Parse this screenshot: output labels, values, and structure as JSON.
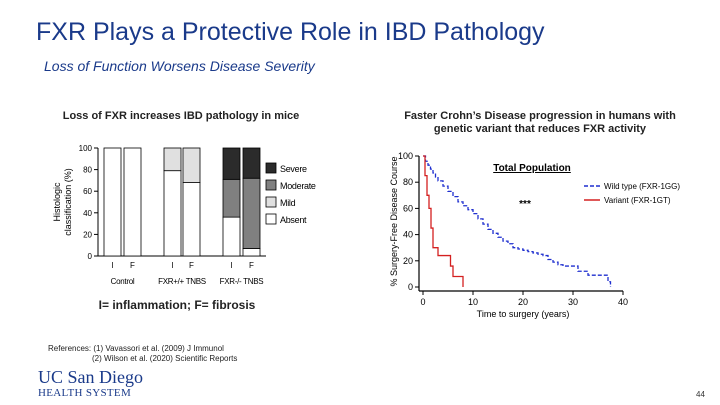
{
  "slide": {
    "title": "FXR Plays a Protective Role in IBD Pathology",
    "subtitle": "Loss of Function Worsens Disease Severity",
    "footnote": "I= inflammation; F= fibrosis",
    "references": {
      "line1": "References: (1) Vavassori et al. (2009) J Immunol",
      "line2": "(2) Wilson et al. (2020) Scientific Reports"
    },
    "logo": {
      "line1": "UC San Diego",
      "line2": "HEALTH SYSTEM"
    },
    "page_number": "44"
  },
  "colors": {
    "title": "#1a3a8a",
    "severe": "#2b2b2b",
    "moderate": "#808080",
    "mild": "#e0e0e0",
    "absent": "#ffffff",
    "wild_type": "#1f2fcf",
    "variant": "#d42020"
  },
  "chart_data": [
    {
      "type": "bar",
      "stacked": true,
      "title": "Loss of FXR increases IBD pathology in mice",
      "ylabel": "Histologic classification (%)",
      "ylim": [
        0,
        100
      ],
      "yticks": [
        0,
        20,
        40,
        60,
        80,
        100
      ],
      "bar_labels": [
        "I",
        "F",
        "I",
        "F",
        "I",
        "F"
      ],
      "group_labels": [
        "Control",
        "FXR+/+ TNBS",
        "FXR-/- TNBS"
      ],
      "groups": [
        0,
        0,
        1,
        1,
        2,
        2
      ],
      "legend_placement": "right",
      "series": [
        {
          "name": "Absent",
          "color": "#ffffff",
          "values": [
            100,
            100,
            79,
            68,
            36,
            7
          ]
        },
        {
          "name": "Mild",
          "color": "#e0e0e0",
          "values": [
            0,
            0,
            21,
            32,
            0,
            0
          ]
        },
        {
          "name": "Moderate",
          "color": "#808080",
          "values": [
            0,
            0,
            0,
            0,
            35,
            65
          ]
        },
        {
          "name": "Severe",
          "color": "#2b2b2b",
          "values": [
            0,
            0,
            0,
            0,
            29,
            28
          ]
        }
      ]
    },
    {
      "type": "line",
      "step": true,
      "title": "Faster Crohn’s Disease progression in humans with genetic variant that reduces FXR activity",
      "annotation_title": "Total Population",
      "significance": "***",
      "xlabel": "Time to surgery (years)",
      "ylabel": "% Surgery-Free Disease Course",
      "xlim": [
        0,
        40
      ],
      "ylim": [
        0,
        100
      ],
      "xticks": [
        0,
        10,
        20,
        30,
        40
      ],
      "yticks": [
        0,
        20,
        40,
        60,
        80,
        100
      ],
      "legend_placement": "right",
      "series": [
        {
          "name": "Wild type (FXR-1GG)",
          "color": "#1f2fcf",
          "dashed": true,
          "x": [
            0,
            0.5,
            1,
            1.5,
            2,
            2.5,
            3,
            4,
            5,
            6,
            7,
            8,
            9,
            10,
            11,
            12,
            13,
            14,
            15,
            16,
            17,
            18,
            19,
            20,
            21,
            22,
            23,
            24,
            25,
            26,
            27,
            28,
            29,
            30,
            31,
            32,
            33,
            34,
            35,
            36,
            37,
            37.5
          ],
          "y": [
            100,
            96,
            93,
            90,
            87,
            84,
            81,
            77,
            73,
            69,
            65,
            62,
            59,
            56,
            52,
            48,
            44,
            41,
            38,
            35,
            33,
            30,
            29,
            28,
            27,
            26,
            25,
            24,
            21,
            19,
            17,
            16,
            16,
            16,
            12,
            12,
            9,
            9,
            9,
            9,
            4,
            0
          ]
        },
        {
          "name": "Variant (FXR-1GT)",
          "color": "#d42020",
          "dashed": false,
          "x": [
            0,
            0.4,
            0.8,
            1.2,
            1.6,
            2,
            3,
            4,
            5,
            5.5,
            6,
            7,
            8
          ],
          "y": [
            100,
            85,
            70,
            60,
            45,
            30,
            24,
            24,
            24,
            16,
            8,
            8,
            0
          ]
        }
      ]
    }
  ]
}
